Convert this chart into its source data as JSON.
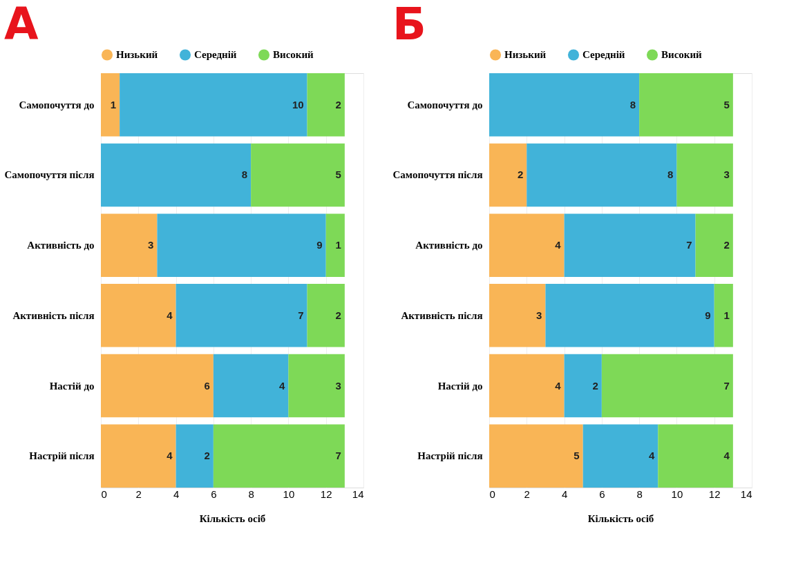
{
  "chart_data": [
    {
      "type": "bar",
      "title": "А",
      "orientation": "horizontal",
      "stacked": true,
      "xlabel": "Кількість осіб",
      "categories": [
        "Самопочуття до",
        "Самопочуття після",
        "Активність до",
        "Активність після",
        "Настій до",
        "Настрій після"
      ],
      "series": [
        {
          "name": "Низький",
          "color": "#f9b556",
          "values": [
            1,
            0,
            3,
            4,
            6,
            4
          ],
          "value_labels": [
            "1",
            null,
            "3",
            "4",
            "6",
            "4"
          ]
        },
        {
          "name": "Середній",
          "color": "#41b3d9",
          "values": [
            10,
            8,
            9,
            7,
            4,
            2
          ],
          "value_labels": [
            "10",
            "8",
            "9",
            "7",
            "4",
            "2"
          ]
        },
        {
          "name": "Високий",
          "color": "#7ed957",
          "values": [
            2,
            5,
            1,
            2,
            3,
            7
          ],
          "value_labels": [
            "2",
            "5",
            "1",
            "2",
            "3",
            "7"
          ]
        }
      ],
      "xlim": [
        0,
        14
      ],
      "xticks": [
        0,
        2,
        4,
        6,
        8,
        10,
        12,
        14
      ],
      "grid": "x",
      "legend": "top"
    },
    {
      "type": "bar",
      "title": "Б",
      "orientation": "horizontal",
      "stacked": true,
      "xlabel": "Кількість осіб",
      "categories": [
        "Самопочуття до",
        "Самопочуття після",
        "Активність до",
        "Активність після",
        "Настій до",
        "Настрій після"
      ],
      "series": [
        {
          "name": "Низький",
          "color": "#f9b556",
          "values": [
            0,
            2,
            4,
            3,
            4,
            5
          ],
          "value_labels": [
            null,
            "2",
            "4",
            "3",
            "4",
            "5"
          ]
        },
        {
          "name": "Середній",
          "color": "#41b3d9",
          "values": [
            8,
            8,
            7,
            9,
            2,
            4
          ],
          "value_labels": [
            "8",
            "8",
            "7",
            "9",
            "2",
            "4"
          ]
        },
        {
          "name": "Високий",
          "color": "#7ed957",
          "values": [
            5,
            3,
            2,
            1,
            7,
            4
          ],
          "value_labels": [
            "5",
            "3",
            "2",
            "1",
            "7",
            "4"
          ]
        }
      ],
      "xlim": [
        0,
        14
      ],
      "xticks": [
        0,
        2,
        4,
        6,
        8,
        10,
        12,
        14
      ],
      "grid": "x",
      "legend": "top"
    }
  ]
}
